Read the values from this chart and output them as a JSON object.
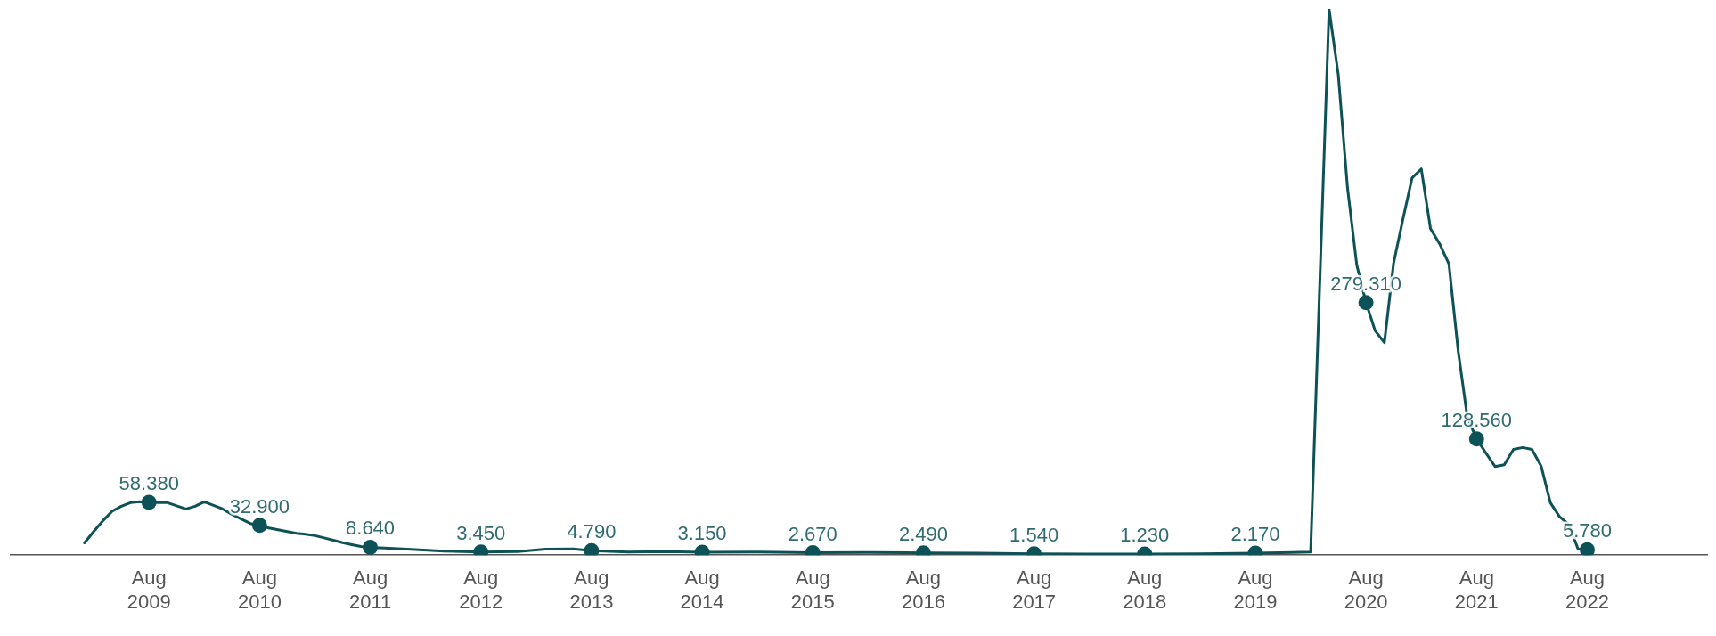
{
  "chart_data": {
    "type": "line",
    "tick_labels": "x",
    "line_style": "solid",
    "legend": false,
    "grid": false,
    "xlim": [
      "2008-05",
      "2023-09"
    ],
    "xticks": [
      {
        "value": "2009-08",
        "label": "Aug 2009"
      },
      {
        "value": "2010-08",
        "label": "Aug 2010"
      },
      {
        "value": "2011-08",
        "label": "Aug 2011"
      },
      {
        "value": "2012-08",
        "label": "Aug 2012"
      },
      {
        "value": "2013-08",
        "label": "Aug 2013"
      },
      {
        "value": "2014-08",
        "label": "Aug 2014"
      },
      {
        "value": "2015-08",
        "label": "Aug 2015"
      },
      {
        "value": "2016-08",
        "label": "Aug 2016"
      },
      {
        "value": "2017-08",
        "label": "Aug 2017"
      },
      {
        "value": "2018-08",
        "label": "Aug 2018"
      },
      {
        "value": "2019-08",
        "label": "Aug 2019"
      },
      {
        "value": "2020-08",
        "label": "Aug 2020"
      },
      {
        "value": "2021-08",
        "label": "Aug 2021"
      },
      {
        "value": "2022-08",
        "label": "Aug 2022"
      }
    ],
    "x": [
      "2009-01",
      "2009-02",
      "2009-03",
      "2009-04",
      "2009-05",
      "2009-06",
      "2009-07",
      "2009-08",
      "2009-09",
      "2009-10",
      "2009-12",
      "2010-01",
      "2010-02",
      "2010-03",
      "2010-04",
      "2010-05",
      "2010-06",
      "2010-07",
      "2010-08",
      "2010-09",
      "2010-10",
      "2010-11",
      "2010-12",
      "2011-01",
      "2011-02",
      "2011-03",
      "2011-04",
      "2011-05",
      "2011-06",
      "2011-07",
      "2011-08",
      "2011-12",
      "2012-04",
      "2012-08",
      "2012-12",
      "2013-03",
      "2013-06",
      "2013-08",
      "2013-12",
      "2014-04",
      "2014-08",
      "2015-02",
      "2015-08",
      "2016-02",
      "2016-08",
      "2017-02",
      "2017-08",
      "2018-02",
      "2018-08",
      "2019-02",
      "2019-08",
      "2019-12",
      "2020-02",
      "2020-04",
      "2020-05",
      "2020-06",
      "2020-07",
      "2020-08",
      "2020-09",
      "2020-10",
      "2020-11",
      "2020-12",
      "2021-01",
      "2021-02",
      "2021-03",
      "2021-04",
      "2021-05",
      "2021-06",
      "2021-07",
      "2021-08",
      "2021-09",
      "2021-10",
      "2021-11",
      "2021-12",
      "2022-01",
      "2022-02",
      "2022-03",
      "2022-04",
      "2022-05",
      "2022-06",
      "2022-07",
      "2022-08"
    ],
    "series": [
      {
        "color": "#0d5257",
        "values": [
          13500,
          26000,
          38000,
          48500,
          54000,
          58000,
          59000,
          58380,
          58000,
          58000,
          51000,
          54000,
          59000,
          55000,
          51000,
          45000,
          40000,
          35000,
          32900,
          30000,
          28000,
          26000,
          24000,
          23000,
          21500,
          19000,
          16500,
          13800,
          11600,
          9500,
          8640,
          6500,
          4500,
          3450,
          4000,
          6500,
          6800,
          4790,
          3500,
          4000,
          3150,
          3300,
          2670,
          3000,
          2490,
          2200,
          1540,
          1300,
          1230,
          1500,
          2170,
          3000,
          3500,
          604000,
          531000,
          406000,
          321000,
          279310,
          248000,
          235000,
          323000,
          371000,
          417000,
          427000,
          361000,
          344000,
          322000,
          226000,
          152000,
          128560,
          113000,
          98000,
          100000,
          117000,
          119000,
          117000,
          98500,
          58000,
          42500,
          34000,
          6800,
          5780
        ],
        "value_labels": [
          null,
          null,
          null,
          null,
          null,
          null,
          null,
          "58.380",
          null,
          null,
          null,
          null,
          null,
          null,
          null,
          null,
          null,
          null,
          "32.900",
          null,
          null,
          null,
          null,
          null,
          null,
          null,
          null,
          null,
          null,
          null,
          "8.640",
          null,
          null,
          "3.450",
          null,
          null,
          null,
          "4.790",
          null,
          null,
          "3.150",
          null,
          "2.670",
          null,
          "2.490",
          null,
          "1.540",
          null,
          "1.230",
          null,
          "2.170",
          null,
          null,
          null,
          null,
          null,
          null,
          "279.310",
          null,
          null,
          null,
          null,
          null,
          null,
          null,
          null,
          null,
          null,
          null,
          "128.560",
          null,
          null,
          null,
          null,
          null,
          null,
          null,
          null,
          null,
          null,
          null,
          "5.780"
        ]
      }
    ]
  }
}
